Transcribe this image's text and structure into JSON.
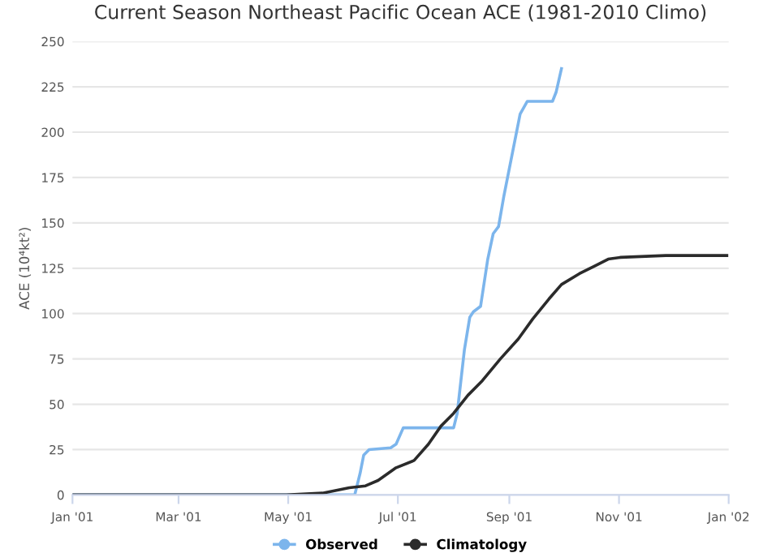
{
  "chart_data": {
    "type": "line",
    "title": "Current Season Northeast Pacific Ocean ACE (1981-2010 Climo)",
    "ylabel": "ACE (10⁴kt²)",
    "xlim": [
      "2001-01-01",
      "2002-01-01"
    ],
    "xticks": [
      {
        "value": "2001-01-01",
        "label": "Jan '01"
      },
      {
        "value": "2001-03-01",
        "label": "Mar '01"
      },
      {
        "value": "2001-05-01",
        "label": "May '01"
      },
      {
        "value": "2001-07-01",
        "label": "Jul '01"
      },
      {
        "value": "2001-09-01",
        "label": "Sep '01"
      },
      {
        "value": "2001-11-01",
        "label": "Nov '01"
      },
      {
        "value": "2002-01-01",
        "label": "Jan '02"
      }
    ],
    "ylim": [
      0,
      250
    ],
    "yticks": [
      0,
      25,
      50,
      75,
      100,
      125,
      150,
      175,
      200,
      225,
      250
    ],
    "grid": "y",
    "legend": "bottom",
    "line_style": "solid",
    "series": [
      {
        "name": "Observed",
        "color": "#7cb5ec",
        "x": [
          "2001-01-01",
          "2001-06-07",
          "2001-06-10",
          "2001-06-12",
          "2001-06-15",
          "2001-06-27",
          "2001-06-30",
          "2001-07-04",
          "2001-08-01",
          "2001-08-03",
          "2001-08-07",
          "2001-08-10",
          "2001-08-12",
          "2001-08-16",
          "2001-08-20",
          "2001-08-23",
          "2001-08-26",
          "2001-08-29",
          "2001-09-03",
          "2001-09-07",
          "2001-09-11",
          "2001-09-25",
          "2001-09-27",
          "2001-09-30"
        ],
        "values": [
          0,
          0,
          12,
          22,
          25,
          26,
          28,
          37,
          37,
          45,
          80,
          98,
          101,
          104,
          130,
          144,
          148,
          165,
          190,
          210,
          217,
          217,
          222,
          235
        ]
      },
      {
        "name": "Climatology",
        "color": "#2b2b2b",
        "x": [
          "2001-01-01",
          "2001-04-30",
          "2001-05-20",
          "2001-06-04",
          "2001-06-13",
          "2001-06-20",
          "2001-06-30",
          "2001-07-10",
          "2001-07-18",
          "2001-07-25",
          "2001-08-01",
          "2001-08-09",
          "2001-08-17",
          "2001-08-27",
          "2001-09-06",
          "2001-09-14",
          "2001-09-23",
          "2001-09-30",
          "2001-10-10",
          "2001-10-18",
          "2001-10-26",
          "2001-11-02",
          "2001-11-27",
          "2001-12-31"
        ],
        "values": [
          0,
          0,
          1,
          4,
          5,
          8,
          15,
          19,
          28,
          38,
          45,
          55,
          63,
          75,
          86,
          97,
          108,
          116,
          122,
          126,
          130,
          131,
          132,
          132
        ]
      }
    ]
  }
}
